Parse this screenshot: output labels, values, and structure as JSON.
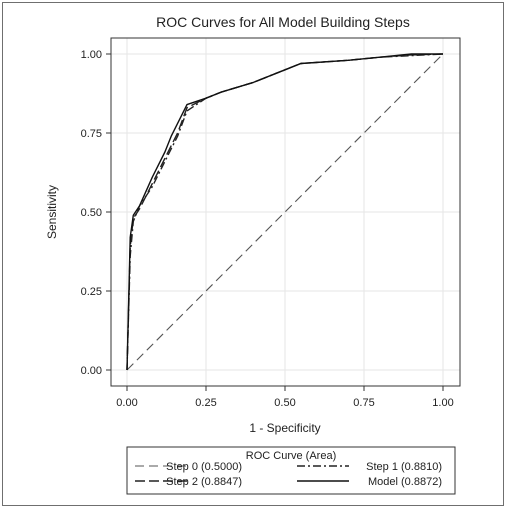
{
  "chart_data": {
    "type": "line",
    "title": "ROC Curves for All Model Building Steps",
    "xlabel": "1 - Specificity",
    "ylabel": "Sensitivity",
    "xlim": [
      0,
      1
    ],
    "ylim": [
      0,
      1
    ],
    "xticks": [
      "0.00",
      "0.25",
      "0.50",
      "0.75",
      "1.00"
    ],
    "yticks": [
      "0.00",
      "0.25",
      "0.50",
      "0.75",
      "1.00"
    ],
    "grid": true,
    "legend": {
      "title": "ROC Curve (Area)",
      "placement": "bottom"
    },
    "series": [
      {
        "name": "Step 0",
        "area": "(0.5000)",
        "dash": "long-dash",
        "x": [
          0,
          1
        ],
        "y": [
          0,
          1
        ]
      },
      {
        "name": "Step 1",
        "area": "(0.8810)",
        "dash": "dash-dot",
        "x": [
          0,
          0.01,
          0.02,
          0.04,
          0.08,
          0.12,
          0.16,
          0.19,
          0.25,
          0.3,
          0.4,
          0.5,
          0.55,
          0.7,
          0.8,
          0.9,
          1.0
        ],
        "y": [
          0,
          0.36,
          0.47,
          0.52,
          0.58,
          0.66,
          0.74,
          0.82,
          0.86,
          0.88,
          0.91,
          0.95,
          0.97,
          0.98,
          0.99,
          0.995,
          1.0
        ]
      },
      {
        "name": "Step 2",
        "area": "(0.8847)",
        "dash": "long-dash-2",
        "x": [
          0,
          0.01,
          0.02,
          0.04,
          0.08,
          0.12,
          0.16,
          0.19,
          0.25,
          0.3,
          0.4,
          0.5,
          0.55,
          0.7,
          0.8,
          0.9,
          1.0
        ],
        "y": [
          0,
          0.39,
          0.48,
          0.51,
          0.59,
          0.67,
          0.75,
          0.83,
          0.86,
          0.88,
          0.91,
          0.95,
          0.97,
          0.98,
          0.99,
          0.997,
          1.0
        ]
      },
      {
        "name": "Model",
        "area": "(0.8872)",
        "dash": "solid",
        "x": [
          0,
          0.01,
          0.02,
          0.04,
          0.08,
          0.12,
          0.14,
          0.19,
          0.25,
          0.3,
          0.4,
          0.5,
          0.55,
          0.7,
          0.8,
          0.9,
          1.0
        ],
        "y": [
          0,
          0.42,
          0.49,
          0.52,
          0.61,
          0.69,
          0.74,
          0.84,
          0.86,
          0.88,
          0.91,
          0.95,
          0.97,
          0.98,
          0.99,
          1.0,
          1.0
        ]
      }
    ]
  }
}
